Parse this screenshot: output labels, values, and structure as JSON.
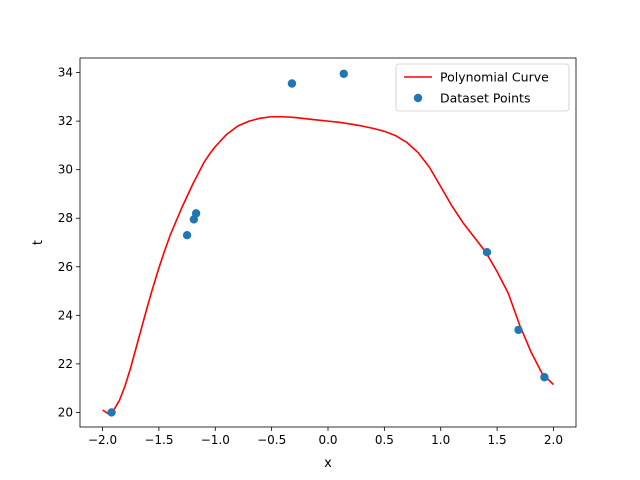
{
  "chart_data": {
    "type": "scatter",
    "title": "",
    "xlabel": "x",
    "ylabel": "t",
    "xlim": [
      -2.2,
      2.2
    ],
    "ylim": [
      19.4,
      34.6
    ],
    "xticks": [
      -2.0,
      -1.5,
      -1.0,
      -0.5,
      0.0,
      0.5,
      1.0,
      1.5,
      2.0
    ],
    "xtick_labels": [
      "−2.0",
      "−1.5",
      "−1.0",
      "−0.5",
      "0.0",
      "0.5",
      "1.0",
      "1.5",
      "2.0"
    ],
    "yticks": [
      20,
      22,
      24,
      26,
      28,
      30,
      32,
      34
    ],
    "ytick_labels": [
      "20",
      "22",
      "24",
      "26",
      "28",
      "30",
      "32",
      "34"
    ],
    "grid": false,
    "legend": {
      "placement": "top-right",
      "entries": [
        "Polynomial Curve",
        "Dataset Points"
      ]
    },
    "series": [
      {
        "name": "Polynomial Curve",
        "type": "line",
        "color": "#ff0000",
        "x": [
          -2.0,
          -1.95,
          -1.9,
          -1.85,
          -1.8,
          -1.75,
          -1.7,
          -1.65,
          -1.6,
          -1.55,
          -1.5,
          -1.45,
          -1.4,
          -1.35,
          -1.3,
          -1.25,
          -1.2,
          -1.15,
          -1.1,
          -1.05,
          -1.0,
          -0.9,
          -0.8,
          -0.7,
          -0.6,
          -0.5,
          -0.4,
          -0.3,
          -0.2,
          -0.1,
          0.0,
          0.1,
          0.2,
          0.3,
          0.4,
          0.5,
          0.6,
          0.7,
          0.8,
          0.9,
          1.0,
          1.1,
          1.2,
          1.3,
          1.4,
          1.5,
          1.6,
          1.7,
          1.8,
          1.9,
          2.0
        ],
        "y": [
          20.1,
          19.95,
          20.1,
          20.5,
          21.1,
          21.85,
          22.7,
          23.55,
          24.4,
          25.2,
          25.95,
          26.65,
          27.3,
          27.85,
          28.4,
          28.9,
          29.4,
          29.85,
          30.3,
          30.65,
          30.95,
          31.45,
          31.8,
          32.0,
          32.12,
          32.18,
          32.18,
          32.15,
          32.1,
          32.05,
          32.0,
          31.95,
          31.88,
          31.8,
          31.7,
          31.58,
          31.4,
          31.12,
          30.7,
          30.1,
          29.3,
          28.5,
          27.8,
          27.2,
          26.6,
          25.8,
          24.9,
          23.6,
          22.5,
          21.6,
          21.15
        ]
      },
      {
        "name": "Dataset Points",
        "type": "scatter",
        "color": "#1f77b4",
        "x": [
          -1.92,
          -1.25,
          -1.19,
          -1.17,
          -0.32,
          0.14,
          1.41,
          1.69,
          1.92
        ],
        "y": [
          20.0,
          27.3,
          27.95,
          28.2,
          33.55,
          33.95,
          26.6,
          23.4,
          21.45
        ]
      }
    ]
  }
}
